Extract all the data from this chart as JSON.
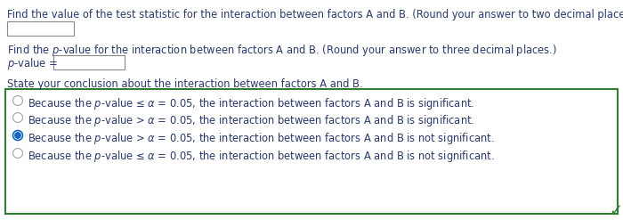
{
  "bg_color": "#ffffff",
  "dark_blue": "#2b3a6b",
  "text_color": "#2b3a6b",
  "box_border_color": "#2e7d32",
  "check_color": "#2e7d32",
  "radio_selected_color": "#1565c0",
  "radio_unselected_color": "#aaaaaa",
  "input_border_color": "#888888",
  "fig_width": 7.0,
  "fig_height": 2.47,
  "dpi": 100,
  "fontsize": 8.3,
  "options": [
    "Because the p-value ≤ α = 0.05, the interaction between factors A and B is significant.",
    "Because the p-value > α = 0.05, the interaction between factors A and B is significant.",
    "Because the p-value > α = 0.05, the interaction between factors A and B is not significant.",
    "Because the p-value ≤ α = 0.05, the interaction between factors A and B is not significant."
  ],
  "selected_option": 2
}
